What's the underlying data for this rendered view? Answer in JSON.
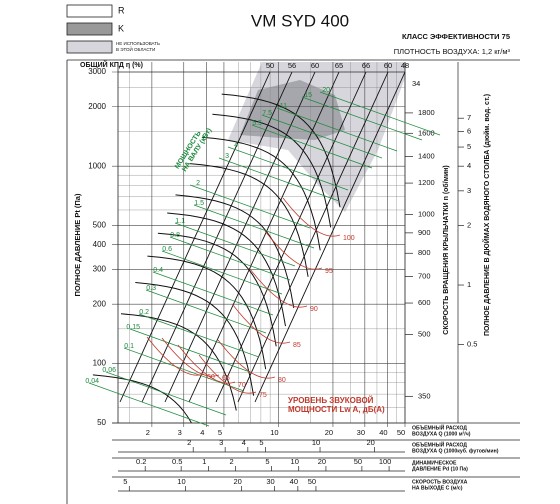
{
  "header": {
    "title": "VM SYD 400",
    "efficiency_class": "КЛАСС ЭФФЕКТИВНОСТИ 75",
    "air_density": "ПЛОТНОСТЬ ВОЗДУХА: 1,2 кг/м³"
  },
  "legend": [
    {
      "label": "R"
    },
    {
      "label": "K"
    },
    {
      "lines": [
        "НЕ ИСПОЛЬЗОВАТЬ",
        "В ЭТОЙ ОБЛАСТИ"
      ]
    }
  ],
  "chart_data": {
    "type": "nomogram",
    "log_scale": true,
    "grid": true,
    "y_label": "ПОЛНОЕ ДАВЛЕНИЕ Pt (Па)",
    "ylim": [
      50,
      3000
    ],
    "yticks": [
      3000,
      2000,
      1000,
      500,
      400,
      300,
      200,
      100,
      50
    ],
    "efficiency_label": "ОБЩИЙ КПД η (%)",
    "efficiency_values": [
      50,
      56,
      60,
      65,
      66,
      60,
      48
    ],
    "curve_end_label": 34,
    "rpm_axis": {
      "label": "СКОРОСТЬ ВРАЩЕНИЯ КРЫЛЬЧАТКИ n (об/мин)",
      "lim": [
        300,
        2280
      ],
      "ticks": [
        1800,
        1600,
        1400,
        1200,
        1000,
        900,
        800,
        700,
        600,
        500,
        350
      ]
    },
    "inch_axis": {
      "label": "ПОЛНОЕ ДАВЛЕНИЕ В ДЮЙМАХ ВОДЯНОГО СТОЛБА (дюйм. вод. ст.)",
      "lim": [
        0.2,
        12
      ],
      "ticks": [
        7,
        6,
        5,
        4,
        3,
        2,
        1,
        0.5
      ]
    },
    "q_axis": {
      "label": [
        "ОБЪЕМНЫЙ РАСХОД",
        "ВОЗДУХА Q (1000 м³/ч)"
      ],
      "lim": [
        1.3,
        50
      ],
      "ticks": [
        2,
        3,
        4,
        5,
        10,
        20,
        30,
        40,
        50
      ]
    },
    "cfm_axis": {
      "label": [
        "ОБЪЕМНЫЙ РАСХОД",
        "ВОЗДУХА Q (1000куб. футов/мин)"
      ],
      "lim": [
        0.77,
        29.4
      ],
      "ticks": [
        2,
        3,
        4,
        5,
        10,
        20
      ]
    },
    "pd_axis": {
      "label": [
        "ДИНАМИЧЕСКОЕ",
        "ДАВЛЕНИЕ Pd (10 Па)"
      ],
      "lim": [
        0.1,
        150
      ],
      "ticks": [
        0.2,
        0.5,
        1,
        2,
        5,
        10,
        20,
        50,
        100
      ]
    },
    "velocity_axis": {
      "label": [
        "СКОРОСТЬ ВОЗДУХА",
        "НА ВЫХОДЕ C (м/с)"
      ],
      "lim": [
        4.35,
        150
      ],
      "ticks": [
        5,
        10,
        20,
        30,
        40,
        50
      ]
    },
    "power_label": [
      "МОЩНОСТЬ",
      "НА ВАЛУ (кВт)"
    ],
    "power_values": [
      20,
      15,
      11,
      7.5,
      5.5,
      4,
      3,
      2,
      1.5,
      1.1,
      0.8,
      0.6,
      0.4,
      0.3,
      0.2,
      0.15,
      0.1,
      0.06,
      0.04
    ],
    "noise_label": [
      "УРОВЕНЬ ЗВУКОВОЙ",
      "МОЩНОСТИ Lw A, дБ(А)"
    ],
    "noise_values": [
      100,
      95,
      90,
      85,
      80,
      75,
      70,
      65,
      60
    ]
  }
}
